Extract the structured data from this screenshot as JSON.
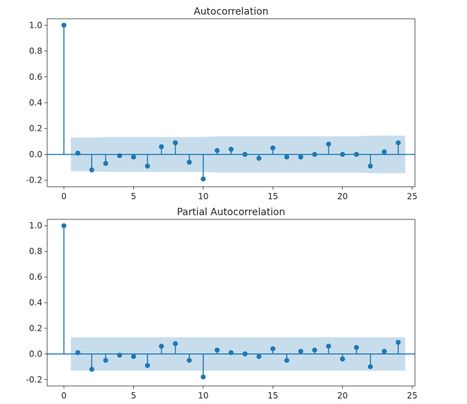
{
  "chart_data": [
    {
      "type": "stem",
      "title": "Autocorrelation",
      "xlabel": "",
      "ylabel": "",
      "xlim": [
        -1.2,
        25.2
      ],
      "ylim": [
        -0.25,
        1.05
      ],
      "xticks": [
        0,
        5,
        10,
        15,
        20,
        25
      ],
      "yticks": [
        -0.2,
        0.0,
        0.2,
        0.4,
        0.6,
        0.8,
        1.0
      ],
      "grid": false,
      "lags": [
        0,
        1,
        2,
        3,
        4,
        5,
        6,
        7,
        8,
        9,
        10,
        11,
        12,
        13,
        14,
        15,
        16,
        17,
        18,
        19,
        20,
        21,
        22,
        23,
        24
      ],
      "values": [
        1.0,
        0.01,
        -0.12,
        -0.07,
        -0.01,
        -0.02,
        -0.09,
        0.06,
        0.09,
        -0.06,
        -0.19,
        0.03,
        0.04,
        0.0,
        -0.03,
        0.05,
        -0.02,
        -0.02,
        0.0,
        0.08,
        0.0,
        0.0,
        -0.09,
        0.02,
        0.09
      ],
      "confidence_band": {
        "lags": [
          0.5,
          1,
          2,
          3,
          4,
          5,
          6,
          7,
          8,
          9,
          10,
          11,
          12,
          13,
          14,
          15,
          16,
          17,
          18,
          19,
          20,
          21,
          22,
          23,
          24,
          24.5
        ],
        "upper": [
          0.13,
          0.13,
          0.13,
          0.135,
          0.135,
          0.135,
          0.135,
          0.135,
          0.135,
          0.135,
          0.135,
          0.14,
          0.14,
          0.14,
          0.14,
          0.14,
          0.14,
          0.14,
          0.14,
          0.14,
          0.14,
          0.14,
          0.145,
          0.145,
          0.145,
          0.145
        ],
        "lower": [
          -0.13,
          -0.13,
          -0.13,
          -0.135,
          -0.135,
          -0.135,
          -0.135,
          -0.135,
          -0.135,
          -0.135,
          -0.135,
          -0.14,
          -0.14,
          -0.14,
          -0.14,
          -0.14,
          -0.14,
          -0.14,
          -0.14,
          -0.14,
          -0.14,
          -0.14,
          -0.145,
          -0.145,
          -0.145,
          -0.145
        ]
      },
      "colors": {
        "stem": "#1f77b4",
        "band": "#1f77b4",
        "zero_line": "#1f77b4"
      }
    },
    {
      "type": "stem",
      "title": "Partial Autocorrelation",
      "xlabel": "",
      "ylabel": "",
      "xlim": [
        -1.2,
        25.2
      ],
      "ylim": [
        -0.25,
        1.05
      ],
      "xticks": [
        0,
        5,
        10,
        15,
        20,
        25
      ],
      "yticks": [
        -0.2,
        0.0,
        0.2,
        0.4,
        0.6,
        0.8,
        1.0
      ],
      "grid": false,
      "lags": [
        0,
        1,
        2,
        3,
        4,
        5,
        6,
        7,
        8,
        9,
        10,
        11,
        12,
        13,
        14,
        15,
        16,
        17,
        18,
        19,
        20,
        21,
        22,
        23,
        24
      ],
      "values": [
        1.0,
        0.01,
        -0.12,
        -0.05,
        -0.01,
        -0.02,
        -0.09,
        0.06,
        0.08,
        -0.05,
        -0.18,
        0.03,
        0.01,
        0.0,
        -0.02,
        0.04,
        -0.05,
        0.02,
        0.03,
        0.06,
        -0.04,
        0.05,
        -0.1,
        0.02,
        0.09
      ],
      "confidence_band": {
        "lags": [
          0.5,
          24.5
        ],
        "upper": [
          0.13,
          0.13
        ],
        "lower": [
          -0.13,
          -0.13
        ]
      },
      "colors": {
        "stem": "#1f77b4",
        "band": "#1f77b4",
        "zero_line": "#1f77b4"
      }
    }
  ]
}
